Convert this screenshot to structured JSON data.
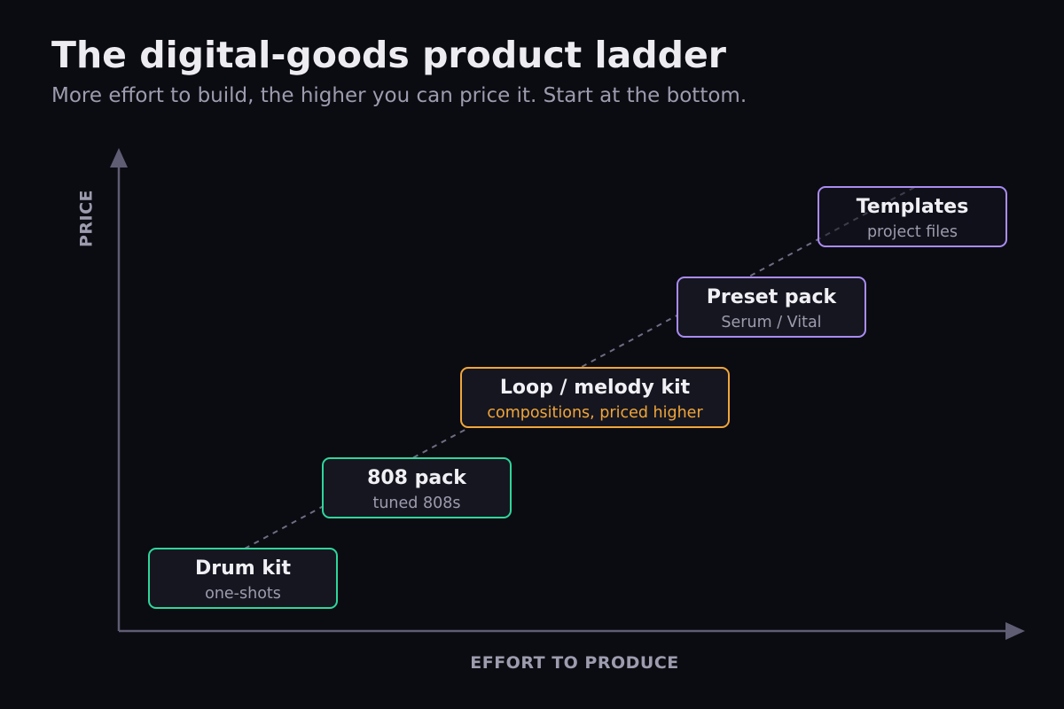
{
  "header": {
    "title": "The digital-goods product ladder",
    "subtitle": "More effort to build, the higher you can price it. Start at the bottom."
  },
  "axes": {
    "x_label": "EFFORT TO PRODUCE",
    "y_label": "PRICE"
  },
  "rungs": [
    {
      "title": "Drum kit",
      "subtitle": "one-shots"
    },
    {
      "title": "808 pack",
      "subtitle": "tuned 808s"
    },
    {
      "title": "Loop / melody kit",
      "subtitle": "compositions, priced higher"
    },
    {
      "title": "Preset pack",
      "subtitle": "Serum / Vital"
    },
    {
      "title": "Templates",
      "subtitle": "project files"
    }
  ],
  "colors": {
    "background": "#0b0b12",
    "axis": "#5e5d73",
    "green": "#2fd69a",
    "orange": "#f0a63a",
    "purple": "#a98cf2"
  }
}
